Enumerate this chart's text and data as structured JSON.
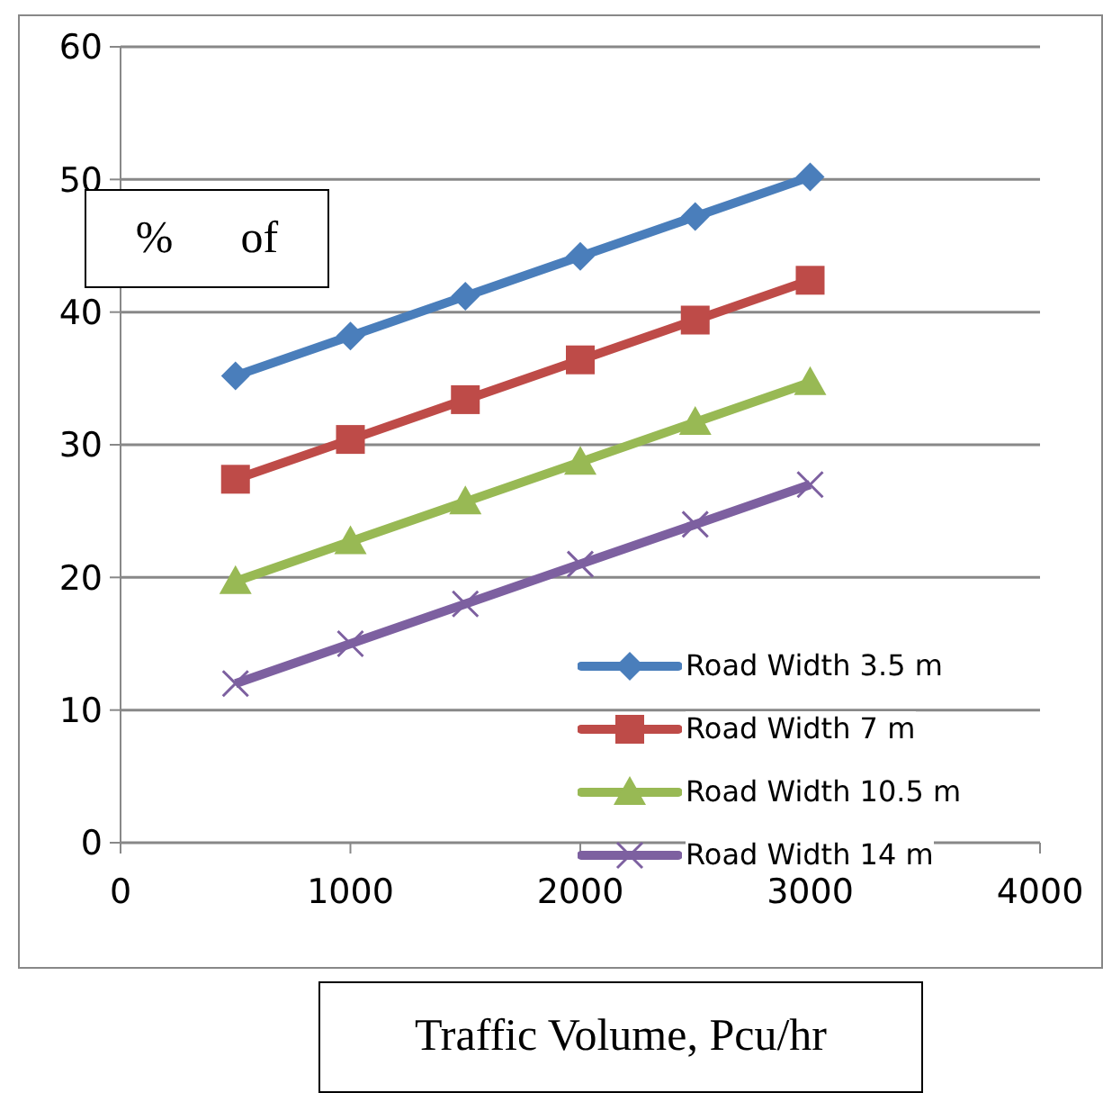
{
  "chart_data": {
    "type": "line",
    "xlabel": "Traffic Volume, Pcu/hr",
    "ylabel": "%      of",
    "x": [
      500,
      1000,
      1500,
      2000,
      2500,
      3000
    ],
    "series": [
      {
        "name": "Road Width 3.5 m",
        "color": "#4a7ebb",
        "marker": "diamond",
        "values": [
          35.2,
          38.2,
          41.2,
          44.2,
          47.2,
          50.2
        ]
      },
      {
        "name": "Road Width 7 m",
        "color": "#be4b48",
        "marker": "square",
        "values": [
          27.4,
          30.4,
          33.4,
          36.4,
          39.4,
          42.4
        ]
      },
      {
        "name": "Road Width 10.5 m",
        "color": "#98b954",
        "marker": "triangle",
        "values": [
          19.7,
          22.7,
          25.7,
          28.7,
          31.7,
          34.7
        ]
      },
      {
        "name": "Road Width 14 m",
        "color": "#7d60a0",
        "marker": "cross",
        "values": [
          12,
          15,
          18,
          21,
          24,
          27
        ]
      }
    ],
    "xlim": [
      0,
      4000
    ],
    "xticks": [
      0,
      1000,
      2000,
      3000,
      4000
    ],
    "ylim": [
      0,
      60
    ],
    "yticks": [
      0,
      10,
      20,
      30,
      40,
      50,
      60
    ],
    "grid": "y",
    "legend": "bottom right",
    "line_style": "solid"
  }
}
